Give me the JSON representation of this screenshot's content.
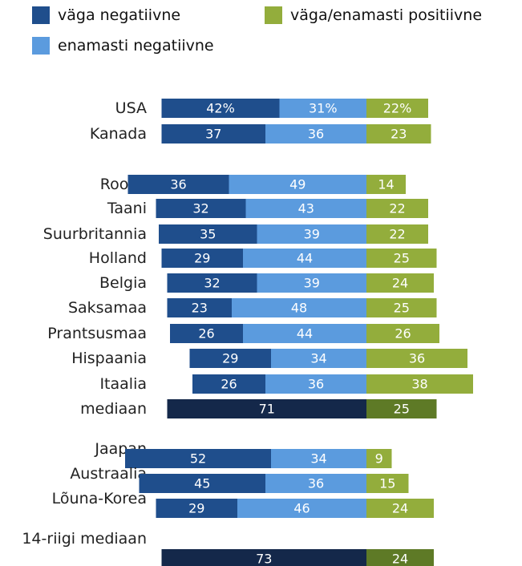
{
  "colors": {
    "very_negative": "#1f4e8c",
    "mostly_negative": "#5b9bde",
    "positive": "#93ad3c",
    "median_negative": "#14284a",
    "median_positive": "#5e7a26"
  },
  "legend": {
    "very_negative": "väga negatiivne",
    "mostly_negative": "enamasti negatiivne",
    "positive": "väga/enamasti positiivne"
  },
  "chart_data": {
    "type": "bar",
    "orientation": "horizontal",
    "stacked": true,
    "legend_position": "top",
    "series": [
      {
        "name": "väga negatiivne",
        "key": "very_negative"
      },
      {
        "name": "enamasti negatiivne",
        "key": "mostly_negative"
      },
      {
        "name": "väga/enamasti positiivne",
        "key": "positive"
      }
    ],
    "rows": [
      {
        "label": "USA",
        "very_negative": 42,
        "mostly_negative": 31,
        "positive": 22,
        "value_labels": [
          "42%",
          "31%",
          "22%"
        ]
      },
      {
        "label": "Kanada",
        "very_negative": 37,
        "mostly_negative": 36,
        "positive": 23,
        "value_labels": [
          "37",
          "36",
          "23"
        ]
      },
      {
        "label": "Rootsi",
        "very_negative": 36,
        "mostly_negative": 49,
        "positive": 14,
        "value_labels": [
          "36",
          "49",
          "14"
        ]
      },
      {
        "label": "Taani",
        "very_negative": 32,
        "mostly_negative": 43,
        "positive": 22,
        "value_labels": [
          "32",
          "43",
          "22"
        ]
      },
      {
        "label": "Suurbritannia",
        "very_negative": 35,
        "mostly_negative": 39,
        "positive": 22,
        "value_labels": [
          "35",
          "39",
          "22"
        ]
      },
      {
        "label": "Holland",
        "very_negative": 29,
        "mostly_negative": 44,
        "positive": 25,
        "value_labels": [
          "29",
          "44",
          "25"
        ]
      },
      {
        "label": "Belgia",
        "very_negative": 32,
        "mostly_negative": 39,
        "positive": 24,
        "value_labels": [
          "32",
          "39",
          "24"
        ]
      },
      {
        "label": "Saksamaa",
        "very_negative": 23,
        "mostly_negative": 48,
        "positive": 25,
        "value_labels": [
          "23",
          "48",
          "25"
        ]
      },
      {
        "label": "Prantsusmaa",
        "very_negative": 26,
        "mostly_negative": 44,
        "positive": 26,
        "value_labels": [
          "26",
          "44",
          "26"
        ]
      },
      {
        "label": "Hispaania",
        "very_negative": 29,
        "mostly_negative": 34,
        "positive": 36,
        "value_labels": [
          "29",
          "34",
          "36"
        ]
      },
      {
        "label": "Itaalia",
        "very_negative": 26,
        "mostly_negative": 36,
        "positive": 38,
        "value_labels": [
          "26",
          "36",
          "38"
        ]
      },
      {
        "label": "mediaan",
        "median": true,
        "negative_total": 71,
        "positive": 25,
        "value_labels": [
          "71",
          "25"
        ]
      },
      {
        "label": "Jaapan",
        "very_negative": 52,
        "mostly_negative": 34,
        "positive": 9,
        "value_labels": [
          "52",
          "34",
          "9"
        ]
      },
      {
        "label": "Austraalia",
        "very_negative": 45,
        "mostly_negative": 36,
        "positive": 15,
        "value_labels": [
          "45",
          "36",
          "15"
        ]
      },
      {
        "label": "Lõuna-Korea",
        "very_negative": 29,
        "mostly_negative": 46,
        "positive": 24,
        "value_labels": [
          "29",
          "46",
          "24"
        ]
      },
      {
        "label": "14-riigi mediaan",
        "median": true,
        "negative_total": 73,
        "positive": 24,
        "value_labels": [
          "73",
          "24"
        ]
      }
    ]
  }
}
